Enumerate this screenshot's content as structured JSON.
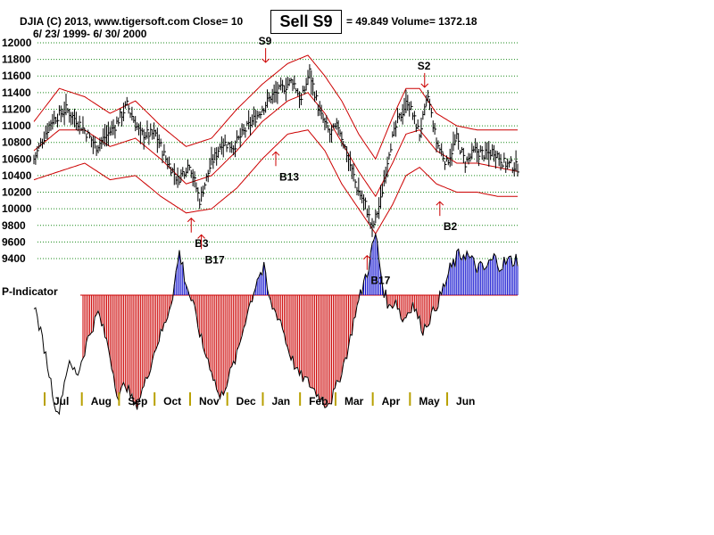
{
  "header": {
    "line1": "DJIA     (C) 2013, www.tigersoft.com     Close=  10",
    "line1b": "= 49.849 Volume= 1372.18",
    "line2": "6/ 23/ 1999- 6/ 30/ 2000",
    "badge": "Sell S9",
    "indicator_label": "P-Indicator"
  },
  "colors": {
    "bars": "#000000",
    "bands": "#cc0000",
    "grid": "#1a8a1a",
    "pos_indicator": "#0000cc",
    "neg_indicator": "#cc0000",
    "buy_arrow": "#0000ff"
  },
  "chart_data": {
    "type": "bar",
    "title": "DJIA",
    "ylim": [
      9300,
      12050
    ],
    "yticks": [
      12000,
      11800,
      11600,
      11400,
      11200,
      11000,
      10800,
      10600,
      10400,
      10200,
      10000,
      9800,
      9600,
      9400
    ],
    "ytick_labels": [
      "12000",
      "11800",
      "11600",
      "11400",
      "11200",
      "11000",
      "10800",
      "10600",
      "10400",
      "10200",
      "10000",
      "9800",
      "9600",
      "9400"
    ],
    "months": [
      "Jul",
      "Aug",
      "Sep",
      "Oct",
      "Nov",
      "Dec",
      "Jan",
      "Feb",
      "Mar",
      "Apr",
      "May",
      "Jun"
    ],
    "price_anchors": [
      [
        0,
        10600
      ],
      [
        10,
        11050
      ],
      [
        19,
        11200
      ],
      [
        26,
        11050
      ],
      [
        37,
        10750
      ],
      [
        48,
        11000
      ],
      [
        55,
        11250
      ],
      [
        63,
        10900
      ],
      [
        72,
        10900
      ],
      [
        78,
        10600
      ],
      [
        85,
        10350
      ],
      [
        92,
        10550
      ],
      [
        98,
        10100
      ],
      [
        104,
        10500
      ],
      [
        111,
        10800
      ],
      [
        118,
        10750
      ],
      [
        125,
        10950
      ],
      [
        133,
        11150
      ],
      [
        140,
        11350
      ],
      [
        147,
        11450
      ],
      [
        153,
        11550
      ],
      [
        158,
        11300
      ],
      [
        163,
        11650
      ],
      [
        169,
        11150
      ],
      [
        175,
        10900
      ],
      [
        180,
        11000
      ],
      [
        186,
        10600
      ],
      [
        191,
        10250
      ],
      [
        196,
        10050
      ],
      [
        200,
        9750
      ],
      [
        205,
        10100
      ],
      [
        210,
        10700
      ],
      [
        215,
        11050
      ],
      [
        221,
        11300
      ],
      [
        228,
        10900
      ],
      [
        233,
        11350
      ],
      [
        238,
        10800
      ],
      [
        244,
        10550
      ],
      [
        250,
        10850
      ],
      [
        255,
        10550
      ],
      [
        261,
        10700
      ],
      [
        267,
        10650
      ],
      [
        272,
        10700
      ],
      [
        278,
        10550
      ],
      [
        286,
        10500
      ]
    ],
    "upper_band_anchors": [
      [
        0,
        11050
      ],
      [
        15,
        11450
      ],
      [
        30,
        11350
      ],
      [
        45,
        11150
      ],
      [
        60,
        11300
      ],
      [
        75,
        11000
      ],
      [
        90,
        10750
      ],
      [
        105,
        10850
      ],
      [
        120,
        11200
      ],
      [
        135,
        11500
      ],
      [
        150,
        11750
      ],
      [
        162,
        11850
      ],
      [
        172,
        11600
      ],
      [
        182,
        11300
      ],
      [
        192,
        10900
      ],
      [
        202,
        10600
      ],
      [
        212,
        11100
      ],
      [
        220,
        11450
      ],
      [
        228,
        11450
      ],
      [
        238,
        11150
      ],
      [
        250,
        11000
      ],
      [
        262,
        10950
      ],
      [
        274,
        10950
      ],
      [
        286,
        10950
      ]
    ],
    "middle_band_anchors": [
      [
        0,
        10700
      ],
      [
        15,
        10950
      ],
      [
        30,
        10950
      ],
      [
        45,
        10750
      ],
      [
        60,
        10850
      ],
      [
        75,
        10600
      ],
      [
        90,
        10300
      ],
      [
        105,
        10400
      ],
      [
        120,
        10700
      ],
      [
        135,
        11050
      ],
      [
        150,
        11300
      ],
      [
        162,
        11400
      ],
      [
        172,
        11150
      ],
      [
        182,
        10800
      ],
      [
        192,
        10450
      ],
      [
        202,
        10150
      ],
      [
        212,
        10550
      ],
      [
        220,
        10900
      ],
      [
        228,
        10950
      ],
      [
        238,
        10700
      ],
      [
        250,
        10550
      ],
      [
        262,
        10550
      ],
      [
        274,
        10500
      ],
      [
        286,
        10450
      ]
    ],
    "lower_band_anchors": [
      [
        0,
        10350
      ],
      [
        15,
        10450
      ],
      [
        30,
        10550
      ],
      [
        45,
        10350
      ],
      [
        60,
        10400
      ],
      [
        75,
        10150
      ],
      [
        90,
        9950
      ],
      [
        105,
        10000
      ],
      [
        120,
        10250
      ],
      [
        135,
        10600
      ],
      [
        150,
        10900
      ],
      [
        162,
        10950
      ],
      [
        172,
        10700
      ],
      [
        182,
        10300
      ],
      [
        192,
        10000
      ],
      [
        202,
        9700
      ],
      [
        212,
        10050
      ],
      [
        220,
        10400
      ],
      [
        228,
        10500
      ],
      [
        238,
        10300
      ],
      [
        250,
        10200
      ],
      [
        262,
        10200
      ],
      [
        274,
        10150
      ],
      [
        286,
        10150
      ]
    ],
    "indicator_ylim": [
      -150,
      40
    ],
    "indicator_anchors": [
      [
        0,
        -10
      ],
      [
        6,
        -60
      ],
      [
        10,
        -100
      ],
      [
        14,
        -140
      ],
      [
        20,
        -80
      ],
      [
        26,
        -90
      ],
      [
        32,
        -50
      ],
      [
        38,
        -20
      ],
      [
        44,
        -60
      ],
      [
        50,
        -120
      ],
      [
        54,
        -100
      ],
      [
        60,
        -130
      ],
      [
        66,
        -100
      ],
      [
        72,
        -60
      ],
      [
        78,
        -30
      ],
      [
        82,
        0
      ],
      [
        86,
        35
      ],
      [
        90,
        10
      ],
      [
        94,
        -10
      ],
      [
        100,
        -60
      ],
      [
        104,
        -80
      ],
      [
        110,
        -120
      ],
      [
        114,
        -100
      ],
      [
        120,
        -70
      ],
      [
        126,
        -20
      ],
      [
        132,
        15
      ],
      [
        136,
        20
      ],
      [
        140,
        -10
      ],
      [
        146,
        -30
      ],
      [
        150,
        -60
      ],
      [
        156,
        -90
      ],
      [
        162,
        -100
      ],
      [
        166,
        -110
      ],
      [
        172,
        -125
      ],
      [
        176,
        -120
      ],
      [
        180,
        -100
      ],
      [
        186,
        -60
      ],
      [
        190,
        -20
      ],
      [
        194,
        5
      ],
      [
        198,
        25
      ],
      [
        202,
        50
      ],
      [
        206,
        10
      ],
      [
        210,
        -15
      ],
      [
        214,
        -5
      ],
      [
        218,
        -30
      ],
      [
        224,
        -10
      ],
      [
        230,
        -40
      ],
      [
        236,
        -20
      ],
      [
        242,
        5
      ],
      [
        246,
        20
      ],
      [
        250,
        30
      ],
      [
        255,
        35
      ],
      [
        260,
        25
      ],
      [
        266,
        20
      ],
      [
        272,
        30
      ],
      [
        276,
        25
      ],
      [
        286,
        30
      ]
    ],
    "signals": [
      {
        "label": "S9",
        "kind": "sell",
        "bar": 137,
        "value": 11850
      },
      {
        "label": "B13",
        "kind": "buy",
        "bar": 143,
        "value": 10600
      },
      {
        "label": "B3",
        "kind": "buy",
        "bar": 93,
        "value": 9800
      },
      {
        "label": "B17",
        "kind": "buy",
        "bar": 99,
        "value": 9600
      },
      {
        "label": "B17",
        "kind": "buy",
        "bar": 197,
        "value": 9350
      },
      {
        "label": "S2",
        "kind": "sell",
        "bar": 231,
        "value": 11550
      },
      {
        "label": "B2",
        "kind": "buy",
        "bar": 240,
        "value": 10000
      }
    ]
  }
}
